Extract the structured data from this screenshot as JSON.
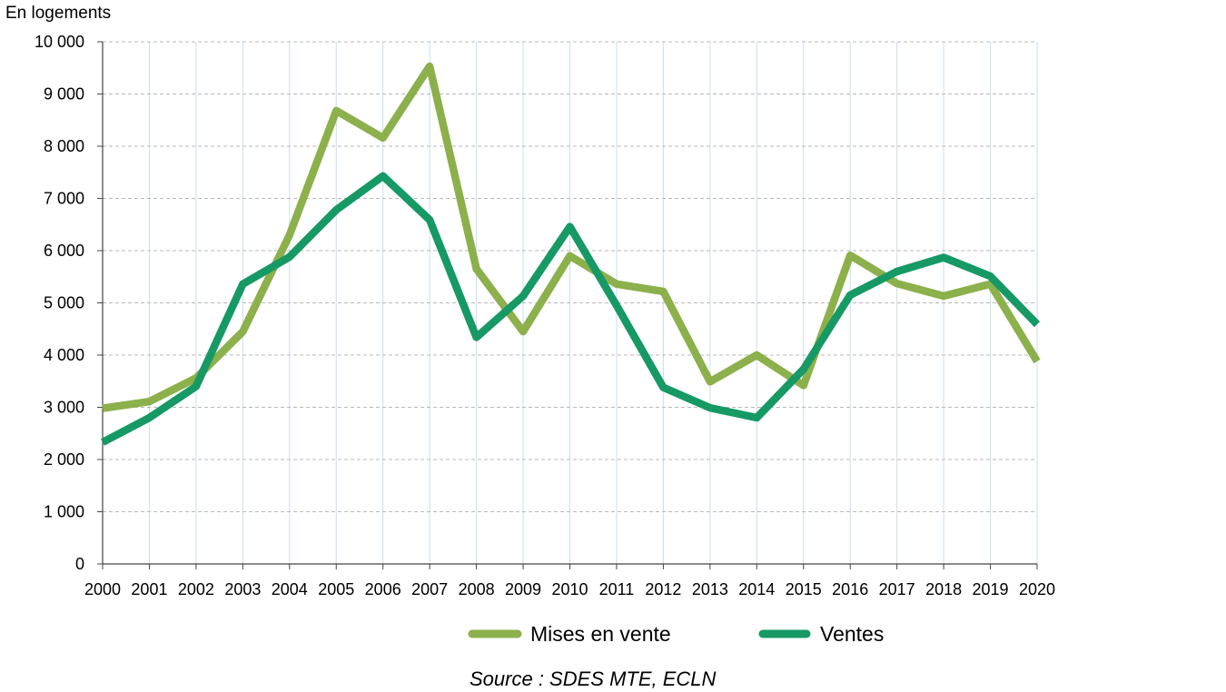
{
  "chart_data": {
    "type": "line",
    "unit_label": "En logements",
    "categories": [
      "2000",
      "2001",
      "2002",
      "2003",
      "2004",
      "2005",
      "2006",
      "2007",
      "2008",
      "2009",
      "2010",
      "2011",
      "2012",
      "2013",
      "2014",
      "2015",
      "2016",
      "2017",
      "2018",
      "2019",
      "2020"
    ],
    "y_tick_labels": [
      "0",
      "1 000",
      "2 000",
      "3 000",
      "4 000",
      "5 000",
      "6 000",
      "7 000",
      "8 000",
      "9 000",
      "10 000"
    ],
    "ylim": [
      0,
      10000
    ],
    "grid": true,
    "legend_position": "bottom",
    "series": [
      {
        "name": "Mises en vente",
        "color": "#8cb04b",
        "values": [
          2980,
          3110,
          3560,
          4450,
          6300,
          8680,
          8160,
          9530,
          5650,
          4450,
          5900,
          5360,
          5220,
          3490,
          4000,
          3420,
          5910,
          5370,
          5130,
          5360,
          3880
        ]
      },
      {
        "name": "Ventes",
        "color": "#169965",
        "values": [
          2330,
          2800,
          3400,
          5360,
          5880,
          6780,
          7430,
          6590,
          4340,
          5130,
          6460,
          4950,
          3380,
          2990,
          2800,
          3730,
          5150,
          5600,
          5870,
          5510,
          4590
        ]
      }
    ],
    "source": "Source : SDES MTE, ECLN"
  }
}
